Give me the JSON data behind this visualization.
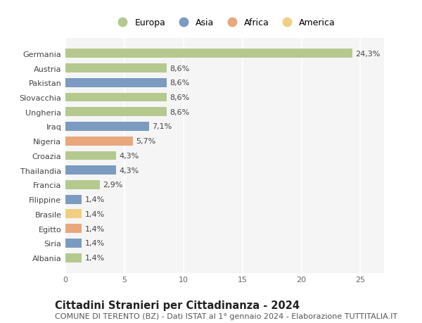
{
  "countries": [
    "Germania",
    "Austria",
    "Pakistan",
    "Slovacchia",
    "Ungheria",
    "Iraq",
    "Nigeria",
    "Croazia",
    "Thailandia",
    "Francia",
    "Filippine",
    "Brasile",
    "Egitto",
    "Siria",
    "Albania"
  ],
  "values": [
    24.3,
    8.6,
    8.6,
    8.6,
    8.6,
    7.1,
    5.7,
    4.3,
    4.3,
    2.9,
    1.4,
    1.4,
    1.4,
    1.4,
    1.4
  ],
  "labels": [
    "24,3%",
    "8,6%",
    "8,6%",
    "8,6%",
    "8,6%",
    "7,1%",
    "5,7%",
    "4,3%",
    "4,3%",
    "2,9%",
    "1,4%",
    "1,4%",
    "1,4%",
    "1,4%",
    "1,4%"
  ],
  "continents": [
    "Europa",
    "Europa",
    "Asia",
    "Europa",
    "Europa",
    "Asia",
    "Africa",
    "Europa",
    "Asia",
    "Europa",
    "Asia",
    "America",
    "Africa",
    "Asia",
    "Europa"
  ],
  "continent_colors": {
    "Europa": "#b5c98e",
    "Asia": "#7b9bc0",
    "Africa": "#e8a87c",
    "America": "#f0d080"
  },
  "legend_order": [
    "Europa",
    "Asia",
    "Africa",
    "America"
  ],
  "xlim": [
    0,
    27
  ],
  "xticks": [
    0,
    5,
    10,
    15,
    20,
    25
  ],
  "title": "Cittadini Stranieri per Cittadinanza - 2024",
  "subtitle": "COMUNE DI TERENTO (BZ) - Dati ISTAT al 1° gennaio 2024 - Elaborazione TUTTITALIA.IT",
  "bg_color": "#ffffff",
  "plot_bg_color": "#f5f5f5",
  "grid_color": "#ffffff",
  "bar_height": 0.62,
  "title_fontsize": 10.5,
  "subtitle_fontsize": 8,
  "label_fontsize": 8,
  "tick_fontsize": 8,
  "legend_fontsize": 9
}
